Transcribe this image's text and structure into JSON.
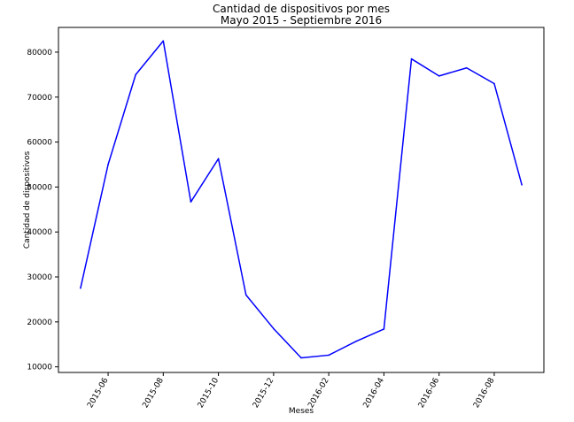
{
  "chart_data": {
    "type": "line",
    "title": "Cantidad de dispositivos por mes",
    "subtitle": "Mayo 2015 - Septiembre 2016",
    "xlabel": "Meses",
    "ylabel": "Cantidad de dispositivos",
    "x": [
      "2015-05",
      "2015-06",
      "2015-07",
      "2015-08",
      "2015-09",
      "2015-10",
      "2015-11",
      "2015-12",
      "2016-01",
      "2016-02",
      "2016-03",
      "2016-04",
      "2016-05",
      "2016-06",
      "2016-07",
      "2016-08",
      "2016-09"
    ],
    "series": [
      {
        "color": "#0000ff",
        "values": [
          27500,
          55000,
          75000,
          82500,
          46700,
          56300,
          26000,
          18500,
          12000,
          12600,
          15700,
          18400,
          78500,
          74700,
          76500,
          73000,
          50500
        ]
      }
    ],
    "xticks": [
      "2015-06",
      "2015-08",
      "2015-10",
      "2015-12",
      "2016-02",
      "2016-04",
      "2016-06",
      "2016-08"
    ],
    "yticks": [
      10000,
      20000,
      30000,
      40000,
      50000,
      60000,
      70000,
      80000
    ],
    "ylim": [
      8750,
      85500
    ],
    "grid": false,
    "legend": "none"
  }
}
